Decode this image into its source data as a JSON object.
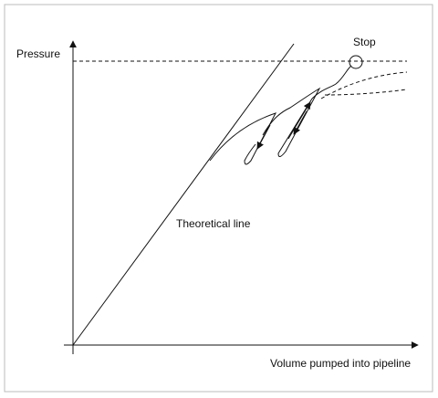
{
  "labels": {
    "y_axis": "Pressure",
    "stop": "Stop",
    "theoretical_line": "Theoretical line",
    "x_axis": "Volume pumped into pipeline"
  }
}
